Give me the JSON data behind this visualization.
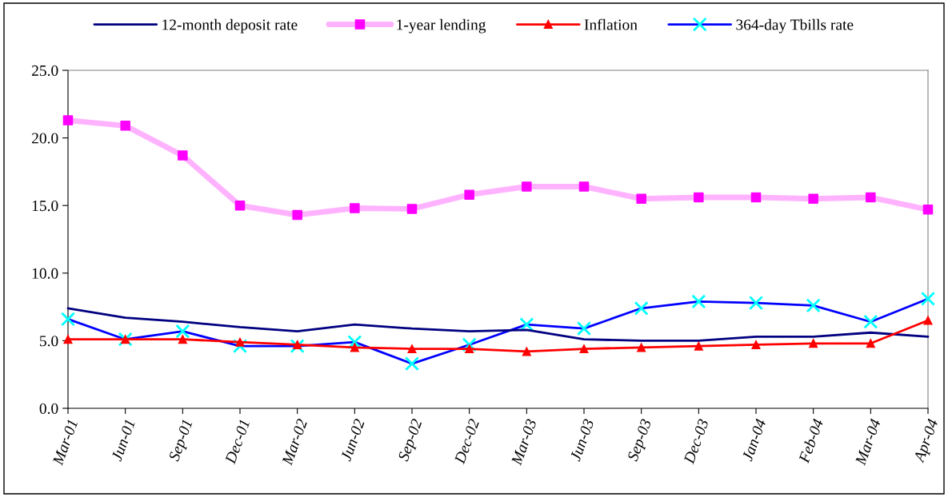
{
  "chart_data": {
    "type": "line",
    "categories": [
      "Mar-01",
      "Jun-01",
      "Sep-01",
      "Dec-01",
      "Mar-02",
      "Jun-02",
      "Sep-02",
      "Dec-02",
      "Mar-03",
      "Jun-03",
      "Sep-03",
      "Dec-03",
      "Jan-04",
      "Feb-04",
      "Mar-04",
      "Apr-04"
    ],
    "series": [
      {
        "name": "12-month deposit rate",
        "color": "#000080",
        "marker": "none",
        "values": [
          7.4,
          6.7,
          6.4,
          6.0,
          5.7,
          6.2,
          5.9,
          5.7,
          5.8,
          5.1,
          5.0,
          5.0,
          5.3,
          5.3,
          5.6,
          5.3
        ]
      },
      {
        "name": "1-year lending",
        "color": "#ffb3ff",
        "marker": "square",
        "colors": [
          "#ff00ff",
          "#ff00ff",
          "#ff00ff",
          "#ff00ff",
          "#ff00ff",
          "#ff00ff",
          "#ff00ff",
          "#ff00ff",
          "#ff00ff",
          "#ff00ff",
          "#ff00ff",
          "#ff00ff",
          "#ff00ff",
          "#ff00ff",
          "#ff00ff",
          "#ff00ff"
        ],
        "values": [
          21.3,
          20.9,
          18.7,
          15.0,
          14.3,
          14.8,
          14.75,
          15.8,
          16.4,
          16.4,
          15.5,
          15.6,
          15.6,
          15.5,
          15.6,
          14.7
        ]
      },
      {
        "name": "Inflation",
        "color": "#ff0000",
        "marker": "triangle",
        "values": [
          5.1,
          5.1,
          5.1,
          4.9,
          4.7,
          4.5,
          4.4,
          4.4,
          4.2,
          4.4,
          4.5,
          4.6,
          4.7,
          4.8,
          4.8,
          6.5
        ]
      },
      {
        "name": "364-day Tbills rate",
        "color": "#0000ff",
        "marker": "cross",
        "colors": [
          "#00ffff",
          "#00ffff",
          "#00ffff",
          "#00ffff",
          "#00ffff",
          "#00ffff",
          "#00ffff",
          "#00ffff",
          "#00ffff",
          "#00ffff",
          "#00ffff",
          "#00ffff",
          "#00ffff",
          "#00ffff",
          "#00ffff",
          "#00ffff"
        ],
        "values": [
          6.6,
          5.1,
          5.7,
          4.6,
          4.6,
          4.9,
          3.3,
          4.7,
          6.2,
          5.9,
          7.4,
          7.9,
          7.8,
          7.6,
          6.4,
          8.1
        ]
      }
    ],
    "ylim": [
      0,
      25
    ],
    "yticks": [
      {
        "value": 0,
        "label": "0.0"
      },
      {
        "value": 5,
        "label": "5.0"
      },
      {
        "value": 10,
        "label": "10.0"
      },
      {
        "value": 15,
        "label": "15.0"
      },
      {
        "value": 20,
        "label": "20.0"
      },
      {
        "value": 25,
        "label": "25.0"
      }
    ],
    "grid": false,
    "legend": "top",
    "line_style": "solid"
  }
}
